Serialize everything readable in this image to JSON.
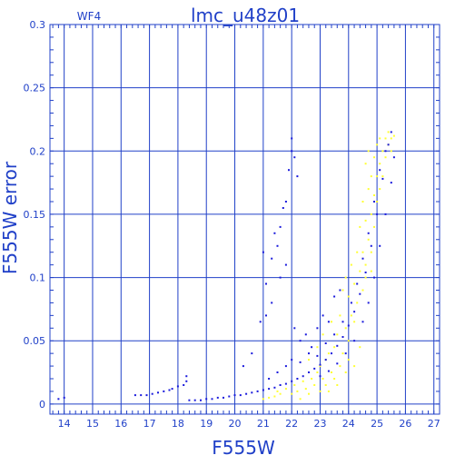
{
  "chart_data": {
    "type": "scatter",
    "title": "lmc_u48z01",
    "panel_label": "WF4",
    "xlabel": "F555W",
    "ylabel": "F555W error",
    "xlim": [
      13.5,
      27.2
    ],
    "ylim": [
      -0.008,
      0.3
    ],
    "x_ticks": [
      14,
      15,
      16,
      17,
      18,
      19,
      20,
      21,
      22,
      23,
      24,
      25,
      26,
      27
    ],
    "x_tick_labels": [
      "14",
      "15",
      "16",
      "17",
      "18",
      "19",
      "20",
      "21",
      "22",
      "23",
      "24",
      "25",
      "26",
      "27"
    ],
    "y_ticks": [
      0,
      0.05,
      0.1,
      0.15,
      0.2,
      0.25,
      0.3
    ],
    "y_tick_labels": [
      "0",
      "0.05",
      "0.1",
      "0.15",
      "0.2",
      "0.25",
      "0.3"
    ],
    "grid": true,
    "colors": {
      "axis": "#2040c8",
      "series_main": "#1a1adc",
      "series_secondary": "#ffff33",
      "background": "#ffffff"
    },
    "series": [
      {
        "color": "#ffff33",
        "points": [
          [
            21.0,
            0.004
          ],
          [
            21.2,
            0.005
          ],
          [
            21.4,
            0.006
          ],
          [
            21.5,
            0.01
          ],
          [
            21.6,
            0.008
          ],
          [
            21.8,
            0.012
          ],
          [
            22.0,
            0.008
          ],
          [
            22.1,
            0.015
          ],
          [
            22.2,
            0.01
          ],
          [
            22.3,
            0.004
          ],
          [
            22.4,
            0.018
          ],
          [
            22.5,
            0.012
          ],
          [
            22.6,
            0.008
          ],
          [
            22.7,
            0.02
          ],
          [
            22.8,
            0.015
          ],
          [
            22.9,
            0.025
          ],
          [
            23.0,
            0.01
          ],
          [
            23.0,
            0.03
          ],
          [
            23.1,
            0.02
          ],
          [
            23.2,
            0.035
          ],
          [
            23.2,
            0.015
          ],
          [
            23.3,
            0.04
          ],
          [
            23.4,
            0.025
          ],
          [
            23.5,
            0.045
          ],
          [
            23.5,
            0.02
          ],
          [
            23.6,
            0.055
          ],
          [
            23.7,
            0.03
          ],
          [
            23.7,
            0.07
          ],
          [
            23.8,
            0.04
          ],
          [
            23.8,
            0.09
          ],
          [
            23.9,
            0.06
          ],
          [
            23.9,
            0.1
          ],
          [
            24.0,
            0.05
          ],
          [
            24.0,
            0.085
          ],
          [
            24.1,
            0.07
          ],
          [
            24.1,
            0.11
          ],
          [
            24.2,
            0.065
          ],
          [
            24.2,
            0.095
          ],
          [
            24.3,
            0.12
          ],
          [
            24.3,
            0.08
          ],
          [
            24.4,
            0.105
          ],
          [
            24.4,
            0.14
          ],
          [
            24.5,
            0.09
          ],
          [
            24.5,
            0.12
          ],
          [
            24.5,
            0.16
          ],
          [
            24.6,
            0.11
          ],
          [
            24.6,
            0.145
          ],
          [
            24.6,
            0.19
          ],
          [
            24.7,
            0.13
          ],
          [
            24.7,
            0.17
          ],
          [
            24.7,
            0.2
          ],
          [
            24.8,
            0.15
          ],
          [
            24.8,
            0.18
          ],
          [
            24.8,
            0.12
          ],
          [
            24.9,
            0.165
          ],
          [
            24.9,
            0.195
          ],
          [
            24.9,
            0.14
          ],
          [
            25.0,
            0.18
          ],
          [
            25.0,
            0.205
          ],
          [
            25.0,
            0.16
          ],
          [
            25.1,
            0.19
          ],
          [
            25.1,
            0.21
          ],
          [
            25.1,
            0.17
          ],
          [
            25.2,
            0.2
          ],
          [
            25.2,
            0.18
          ],
          [
            25.3,
            0.21
          ],
          [
            25.3,
            0.195
          ],
          [
            25.4,
            0.205
          ],
          [
            25.4,
            0.215
          ],
          [
            25.5,
            0.21
          ],
          [
            25.5,
            0.2
          ],
          [
            25.6,
            0.212
          ],
          [
            24.2,
            0.03
          ],
          [
            23.9,
            0.025
          ],
          [
            23.6,
            0.015
          ],
          [
            24.4,
            0.045
          ],
          [
            23.3,
            0.01
          ],
          [
            24.0,
            0.035
          ],
          [
            22.9,
            0.045
          ],
          [
            22.6,
            0.035
          ],
          [
            23.1,
            0.055
          ],
          [
            23.4,
            0.065
          ],
          [
            24.6,
            0.1
          ],
          [
            24.8,
            0.105
          ]
        ]
      },
      {
        "color": "#1a1adc",
        "points": [
          [
            13.8,
            0.004
          ],
          [
            14.0,
            0.005
          ],
          [
            16.5,
            0.007
          ],
          [
            16.7,
            0.007
          ],
          [
            16.9,
            0.007
          ],
          [
            17.1,
            0.008
          ],
          [
            17.3,
            0.009
          ],
          [
            17.5,
            0.01
          ],
          [
            17.7,
            0.011
          ],
          [
            17.8,
            0.012
          ],
          [
            18.0,
            0.014
          ],
          [
            18.3,
            0.018
          ],
          [
            18.3,
            0.022
          ],
          [
            18.2,
            0.015
          ],
          [
            18.4,
            0.003
          ],
          [
            18.6,
            0.003
          ],
          [
            18.8,
            0.003
          ],
          [
            19.0,
            0.004
          ],
          [
            19.2,
            0.004
          ],
          [
            19.4,
            0.005
          ],
          [
            19.6,
            0.005
          ],
          [
            19.8,
            0.006
          ],
          [
            20.0,
            0.007
          ],
          [
            20.2,
            0.007
          ],
          [
            20.4,
            0.008
          ],
          [
            20.6,
            0.009
          ],
          [
            20.8,
            0.01
          ],
          [
            21.0,
            0.011
          ],
          [
            21.2,
            0.012
          ],
          [
            21.4,
            0.013
          ],
          [
            21.6,
            0.015
          ],
          [
            21.8,
            0.016
          ],
          [
            22.0,
            0.018
          ],
          [
            22.2,
            0.02
          ],
          [
            22.4,
            0.022
          ],
          [
            22.6,
            0.025
          ],
          [
            22.8,
            0.028
          ],
          [
            23.0,
            0.031
          ],
          [
            23.2,
            0.035
          ],
          [
            23.4,
            0.04
          ],
          [
            23.6,
            0.046
          ],
          [
            23.8,
            0.053
          ],
          [
            24.0,
            0.062
          ],
          [
            24.2,
            0.073
          ],
          [
            24.4,
            0.087
          ],
          [
            24.6,
            0.104
          ],
          [
            24.8,
            0.125
          ],
          [
            25.0,
            0.15
          ],
          [
            25.2,
            0.178
          ],
          [
            25.4,
            0.205
          ],
          [
            25.5,
            0.215
          ],
          [
            21.0,
            0.12
          ],
          [
            21.1,
            0.095
          ],
          [
            21.3,
            0.115
          ],
          [
            21.4,
            0.135
          ],
          [
            21.5,
            0.125
          ],
          [
            21.6,
            0.14
          ],
          [
            21.7,
            0.155
          ],
          [
            21.8,
            0.16
          ],
          [
            21.9,
            0.185
          ],
          [
            22.0,
            0.2
          ],
          [
            22.0,
            0.21
          ],
          [
            22.1,
            0.195
          ],
          [
            22.2,
            0.18
          ],
          [
            20.3,
            0.03
          ],
          [
            20.6,
            0.04
          ],
          [
            20.9,
            0.065
          ],
          [
            21.1,
            0.07
          ],
          [
            21.3,
            0.08
          ],
          [
            21.6,
            0.1
          ],
          [
            21.8,
            0.11
          ],
          [
            22.1,
            0.06
          ],
          [
            22.3,
            0.05
          ],
          [
            22.5,
            0.055
          ],
          [
            22.7,
            0.045
          ],
          [
            22.9,
            0.06
          ],
          [
            23.1,
            0.07
          ],
          [
            23.3,
            0.065
          ],
          [
            23.5,
            0.085
          ],
          [
            23.7,
            0.09
          ],
          [
            21.2,
            0.02
          ],
          [
            21.5,
            0.025
          ],
          [
            21.8,
            0.03
          ],
          [
            22.0,
            0.035
          ],
          [
            22.3,
            0.033
          ],
          [
            22.6,
            0.04
          ],
          [
            22.9,
            0.038
          ],
          [
            23.2,
            0.048
          ],
          [
            23.5,
            0.055
          ],
          [
            23.8,
            0.065
          ],
          [
            24.1,
            0.08
          ],
          [
            24.3,
            0.095
          ],
          [
            24.5,
            0.115
          ],
          [
            24.7,
            0.135
          ],
          [
            24.9,
            0.16
          ],
          [
            25.1,
            0.185
          ],
          [
            25.3,
            0.2
          ],
          [
            23.0,
            0.022
          ],
          [
            23.3,
            0.026
          ],
          [
            23.6,
            0.032
          ],
          [
            23.9,
            0.04
          ],
          [
            24.2,
            0.05
          ],
          [
            24.5,
            0.065
          ],
          [
            24.7,
            0.08
          ],
          [
            24.9,
            0.1
          ],
          [
            25.1,
            0.125
          ],
          [
            25.3,
            0.15
          ],
          [
            25.5,
            0.175
          ],
          [
            25.6,
            0.195
          ]
        ]
      }
    ]
  }
}
